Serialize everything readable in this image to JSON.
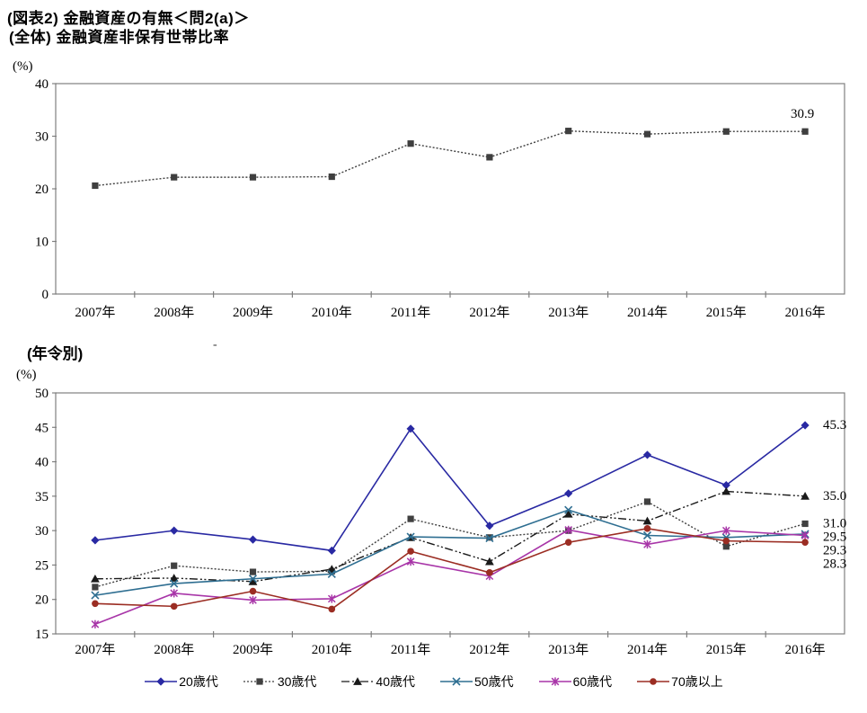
{
  "page": {
    "title_line1": "(図表2) 金融資産の有無＜問2(a)＞",
    "title_line2": "(全体) 金融資産非保有世帯比率",
    "section_title": "(年令別)",
    "stray_mark": "-"
  },
  "chart_data": [
    {
      "type": "line",
      "name": "overall-no-financial-assets-ratio",
      "unit_label": "(%)",
      "categories": [
        "2007年",
        "2008年",
        "2009年",
        "2010年",
        "2011年",
        "2012年",
        "2013年",
        "2014年",
        "2015年",
        "2016年"
      ],
      "ylim": [
        0,
        40
      ],
      "yticks": [
        0,
        10,
        20,
        30,
        40
      ],
      "grid": false,
      "legend_position": "none",
      "series": [
        {
          "values": [
            20.6,
            22.2,
            22.2,
            22.3,
            28.6,
            26.0,
            31.0,
            30.4,
            30.9,
            30.9
          ],
          "color": "#3F3F3F",
          "marker": "square",
          "line": "dotted",
          "end_label": "30.9"
        }
      ]
    },
    {
      "type": "line",
      "name": "by-age-no-financial-assets-ratio",
      "unit_label": "(%)",
      "categories": [
        "2007年",
        "2008年",
        "2009年",
        "2010年",
        "2011年",
        "2012年",
        "2013年",
        "2014年",
        "2015年",
        "2016年"
      ],
      "ylim": [
        15,
        50
      ],
      "yticks": [
        15,
        20,
        25,
        30,
        35,
        40,
        45,
        50
      ],
      "grid": false,
      "legend_position": "bottom",
      "series": [
        {
          "name": "20歳代",
          "values": [
            28.6,
            30.0,
            28.7,
            27.1,
            44.8,
            30.7,
            35.4,
            41.0,
            36.6,
            45.3
          ],
          "color": "#2929A3",
          "marker": "diamond",
          "line": "solid",
          "end_label": "45.3"
        },
        {
          "name": "30歳代",
          "values": [
            21.8,
            24.9,
            24.0,
            24.1,
            31.7,
            29.0,
            30.0,
            34.2,
            27.7,
            31.0
          ],
          "color": "#404040",
          "marker": "square",
          "line": "dotted",
          "end_label": "31.0"
        },
        {
          "name": "40歳代",
          "values": [
            23.0,
            23.1,
            22.6,
            24.4,
            29.0,
            25.5,
            32.4,
            31.4,
            35.7,
            35.0
          ],
          "color": "#1A1A1A",
          "marker": "triangle",
          "line": "dashdot",
          "end_label": "35.0"
        },
        {
          "name": "50歳代",
          "values": [
            20.6,
            22.3,
            23.0,
            23.7,
            29.1,
            28.9,
            33.0,
            29.3,
            29.0,
            29.5
          ],
          "color": "#2E6E91",
          "marker": "x",
          "line": "solid",
          "end_label": "29.5"
        },
        {
          "name": "60歳代",
          "values": [
            16.4,
            20.9,
            19.9,
            20.1,
            25.5,
            23.4,
            30.1,
            28.0,
            30.0,
            29.3
          ],
          "color": "#A835A8",
          "marker": "asterisk",
          "line": "solid",
          "end_label": "29.3"
        },
        {
          "name": "70歳以上",
          "values": [
            19.4,
            19.0,
            21.2,
            18.6,
            27.0,
            23.9,
            28.3,
            30.3,
            28.5,
            28.3
          ],
          "color": "#9B2D23",
          "marker": "circle",
          "line": "solid",
          "end_label": "28.3"
        }
      ]
    }
  ]
}
